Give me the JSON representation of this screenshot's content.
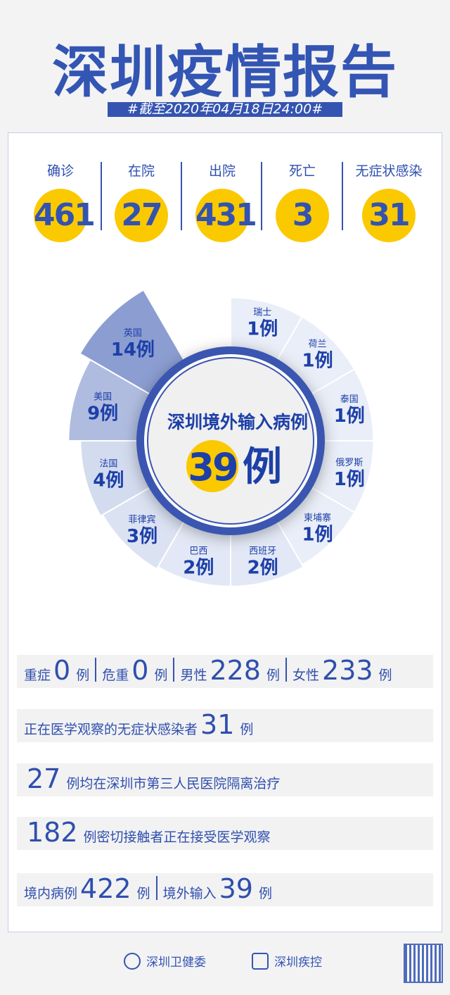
{
  "header": {
    "title": "深圳疫情报告",
    "date": "#截至2020年04月18日24:00#"
  },
  "stats": [
    {
      "label": "确诊",
      "value": "461"
    },
    {
      "label": "在院",
      "value": "27"
    },
    {
      "label": "出院",
      "value": "431"
    },
    {
      "label": "死亡",
      "value": "3"
    },
    {
      "label": "无症状感染",
      "value": "31"
    }
  ],
  "imported": {
    "title": "深圳境外输入病例",
    "total": "39",
    "unit": "例",
    "countries": [
      {
        "name": "瑞士",
        "value": 1
      },
      {
        "name": "荷兰",
        "value": 1
      },
      {
        "name": "泰国",
        "value": 1
      },
      {
        "name": "俄罗斯",
        "value": 1
      },
      {
        "name": "柬埔寨",
        "value": 1
      },
      {
        "name": "西班牙",
        "value": 2
      },
      {
        "name": "巴西",
        "value": 2
      },
      {
        "name": "菲律宾",
        "value": 3
      },
      {
        "name": "法国",
        "value": 4
      },
      {
        "name": "美国",
        "value": 9
      },
      {
        "name": "英国",
        "value": 14
      }
    ],
    "colors": {
      "light": "#e9eef8",
      "dark": "#8b9dd1",
      "ring": "#3a56b0",
      "text": "#1d3fa8",
      "yellow": "#fbc900"
    }
  },
  "rows": {
    "r1": [
      {
        "label": "重症",
        "value": "0",
        "unit": "例"
      },
      {
        "label": "危重",
        "value": "0",
        "unit": "例"
      },
      {
        "label": "男性",
        "value": "228",
        "unit": "例"
      },
      {
        "label": "女性",
        "value": "233",
        "unit": "例"
      }
    ],
    "r2": {
      "label": "正在医学观察的无症状感染者",
      "value": "31",
      "unit": "例"
    },
    "r3": {
      "value": "27",
      "text": "例均在深圳市第三人民医院隔离治疗"
    },
    "r4": {
      "value": "182",
      "text": "例密切接触者正在接受医学观察"
    },
    "r5": [
      {
        "label": "境内病例",
        "value": "422",
        "unit": "例"
      },
      {
        "label": "境外输入",
        "value": "39",
        "unit": "例"
      }
    ]
  },
  "footer": {
    "org1": "深圳卫健委",
    "org2": "深圳疾控"
  }
}
